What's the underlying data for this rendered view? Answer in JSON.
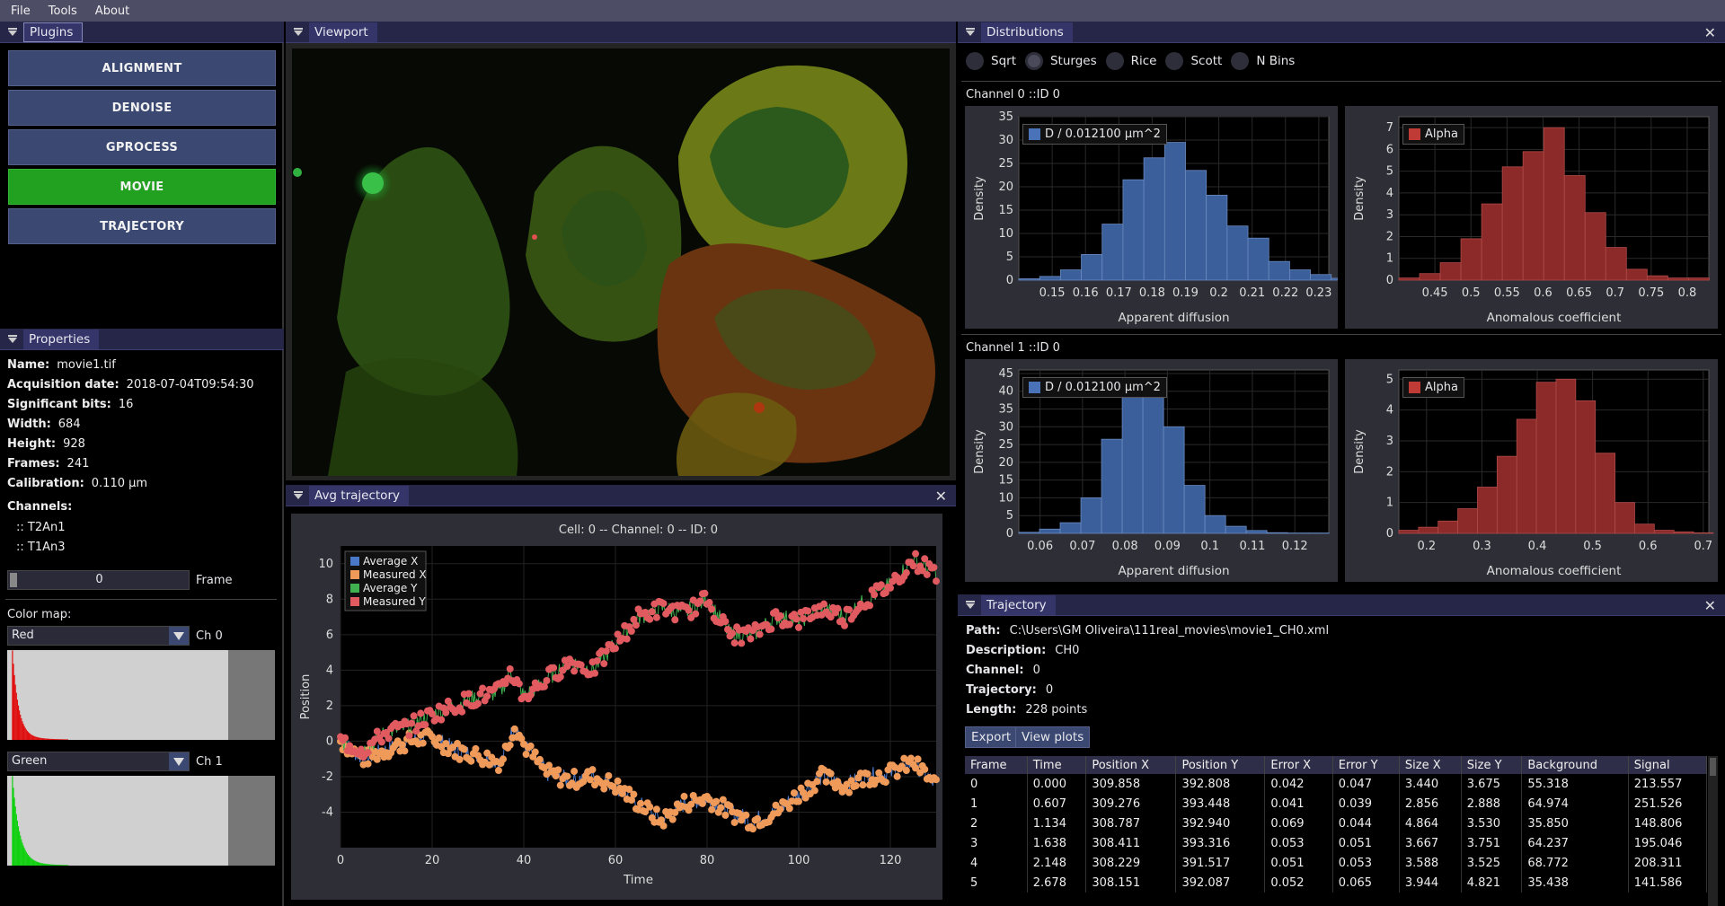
{
  "menu": {
    "items": [
      "File",
      "Tools",
      "About"
    ]
  },
  "plugins": {
    "title": "Plugins",
    "buttons": [
      "ALIGNMENT",
      "DENOISE",
      "GPROCESS",
      "MOVIE",
      "TRAJECTORY"
    ],
    "active": "MOVIE"
  },
  "properties": {
    "title": "Properties",
    "rows": [
      {
        "label": "Name:",
        "value": "movie1.tif"
      },
      {
        "label": "Acquisition date:",
        "value": "2018-07-04T09:54:30"
      },
      {
        "label": "Significant bits:",
        "value": "16"
      },
      {
        "label": "Width:",
        "value": "684"
      },
      {
        "label": "Height:",
        "value": "928"
      },
      {
        "label": "Frames:",
        "value": "241"
      },
      {
        "label": "Calibration:",
        "value": "0.110 µm"
      }
    ],
    "channels_label": "Channels:",
    "channels": [
      ":: T2An1",
      ":: T1An3"
    ],
    "frame_value": "0",
    "frame_label": "Frame",
    "colormap_label": "Color map:",
    "colormaps": [
      {
        "value": "Red",
        "channel": "Ch 0",
        "color": "#e01010"
      },
      {
        "value": "Green",
        "channel": "Ch 1",
        "color": "#10d010"
      }
    ]
  },
  "viewport": {
    "title": "Viewport"
  },
  "avg_trajectory": {
    "title": "Avg trajectory",
    "chart_data": {
      "type": "line",
      "title": "Cell: 0 -- Channel: 0 -- ID: 0",
      "xlabel": "Time",
      "ylabel": "Position",
      "xlim": [
        0,
        130
      ],
      "ylim": [
        -6,
        11
      ],
      "xticks": [
        "0",
        "20",
        "40",
        "60",
        "80",
        "100",
        "120"
      ],
      "yticks": [
        "10",
        "8",
        "6",
        "4",
        "2",
        "0",
        "-2",
        "-4"
      ],
      "legend_position": "top-left",
      "series": [
        {
          "name": "Average X",
          "color": "#4a78c8"
        },
        {
          "name": "Measured X",
          "color": "#f09a5a"
        },
        {
          "name": "Average Y",
          "color": "#40b050"
        },
        {
          "name": "Measured Y",
          "color": "#e05a60"
        }
      ],
      "x_path": [
        [
          0,
          0
        ],
        [
          5,
          -1
        ],
        [
          10,
          -0.5
        ],
        [
          15,
          0
        ],
        [
          20,
          0.2
        ],
        [
          25,
          -0.5
        ],
        [
          30,
          -0.8
        ],
        [
          35,
          -1.2
        ],
        [
          37,
          0.2
        ],
        [
          38,
          1
        ],
        [
          40,
          -0.2
        ],
        [
          45,
          -1.8
        ],
        [
          50,
          -2.2
        ],
        [
          55,
          -2.0
        ],
        [
          60,
          -2.5
        ],
        [
          65,
          -3.5
        ],
        [
          70,
          -4.5
        ],
        [
          75,
          -3.5
        ],
        [
          80,
          -3.2
        ],
        [
          85,
          -4.0
        ],
        [
          90,
          -4.5
        ],
        [
          95,
          -4.0
        ],
        [
          100,
          -3.0
        ],
        [
          105,
          -2.0
        ],
        [
          110,
          -2.5
        ],
        [
          115,
          -2.0
        ],
        [
          120,
          -1.8
        ],
        [
          125,
          -1.2
        ],
        [
          130,
          -2.5
        ]
      ],
      "y_path": [
        [
          0,
          0
        ],
        [
          5,
          -0.5
        ],
        [
          10,
          0.5
        ],
        [
          15,
          0.8
        ],
        [
          20,
          1.5
        ],
        [
          25,
          2.0
        ],
        [
          30,
          2.5
        ],
        [
          35,
          2.8
        ],
        [
          37,
          4.0
        ],
        [
          40,
          2.5
        ],
        [
          45,
          3.5
        ],
        [
          50,
          4.5
        ],
        [
          55,
          4.0
        ],
        [
          60,
          5.5
        ],
        [
          65,
          7.0
        ],
        [
          70,
          7.5
        ],
        [
          75,
          7.2
        ],
        [
          80,
          8.0
        ],
        [
          85,
          6.0
        ],
        [
          90,
          6.0
        ],
        [
          95,
          7.0
        ],
        [
          100,
          6.8
        ],
        [
          105,
          7.5
        ],
        [
          110,
          7.0
        ],
        [
          115,
          8.0
        ],
        [
          120,
          8.8
        ],
        [
          125,
          10.2
        ],
        [
          130,
          9.5
        ]
      ]
    }
  },
  "distributions": {
    "title": "Distributions",
    "bin_options": [
      "Sqrt",
      "Sturges",
      "Rice",
      "Scott",
      "N Bins"
    ],
    "selected_bin": "Sturges",
    "channels": [
      {
        "label": "Channel 0 ::ID 0",
        "charts": [
          {
            "type": "bar",
            "legend": "D / 0.012100 µm^2",
            "color": "#3a5f9a",
            "xlabel": "Apparent diffusion",
            "ylabel": "Density",
            "xlim": [
              0.14,
              0.233
            ],
            "ylim": [
              0,
              35
            ],
            "yticks": [
              0,
              5,
              10,
              15,
              20,
              25,
              30,
              35
            ],
            "xticks": [
              "0.15",
              "0.16",
              "0.17",
              "0.18",
              "0.19",
              "0.2",
              "0.21",
              "0.22",
              "0.23"
            ],
            "xtick_values": [
              0.15,
              0.16,
              0.17,
              0.18,
              0.19,
              0.2,
              0.21,
              0.22,
              0.23
            ],
            "bin_start": 0.14,
            "bin_width": 0.00625,
            "values": [
              0.3,
              0.8,
              2.2,
              5.5,
              12,
              21.5,
              26.2,
              29.5,
              23.5,
              18.2,
              11.6,
              9,
              4,
              2.2,
              1.2,
              0.4
            ]
          },
          {
            "type": "bar",
            "legend": "Alpha",
            "color": "#8b2a28",
            "xlabel": "Anomalous coefficient",
            "ylabel": "Density",
            "xlim": [
              0.4,
              0.83
            ],
            "ylim": [
              0,
              7.5
            ],
            "yticks": [
              0,
              1,
              2,
              3,
              4,
              5,
              6,
              7
            ],
            "xticks": [
              "0.45",
              "0.5",
              "0.55",
              "0.6",
              "0.65",
              "0.7",
              "0.75",
              "0.8"
            ],
            "xtick_values": [
              0.45,
              0.5,
              0.55,
              0.6,
              0.65,
              0.7,
              0.75,
              0.8
            ],
            "bin_start": 0.4,
            "bin_width": 0.0287,
            "values": [
              0.1,
              0.3,
              0.8,
              1.9,
              3.5,
              5.2,
              5.9,
              7.0,
              4.8,
              3.1,
              1.5,
              0.5,
              0.2,
              0.1,
              0.1
            ]
          }
        ]
      },
      {
        "label": "Channel 1 ::ID 0",
        "charts": [
          {
            "type": "bar",
            "legend": "D / 0.012100 µm^2",
            "color": "#3a5f9a",
            "xlabel": "Apparent diffusion",
            "ylabel": "Density",
            "xlim": [
              0.055,
              0.128
            ],
            "ylim": [
              0,
              46
            ],
            "yticks": [
              0,
              5,
              10,
              15,
              20,
              25,
              30,
              35,
              40,
              45
            ],
            "xticks": [
              "0.06",
              "0.07",
              "0.08",
              "0.09",
              "0.1",
              "0.11",
              "0.12"
            ],
            "xtick_values": [
              0.06,
              0.07,
              0.08,
              0.09,
              0.1,
              0.11,
              0.12
            ],
            "bin_start": 0.055,
            "bin_width": 0.00487,
            "values": [
              0.3,
              1.2,
              3,
              10,
              26.5,
              39,
              42,
              30,
              13.5,
              5,
              2,
              0.8,
              0.2,
              0.1,
              0.1
            ]
          },
          {
            "type": "bar",
            "legend": "Alpha",
            "color": "#8b2a28",
            "xlabel": "Anomalous coefficient",
            "ylabel": "Density",
            "xlim": [
              0.15,
              0.71
            ],
            "ylim": [
              0,
              5.3
            ],
            "yticks": [
              0,
              1,
              2,
              3,
              4,
              5
            ],
            "xticks": [
              "0.2",
              "0.3",
              "0.4",
              "0.5",
              "0.6",
              "0.7"
            ],
            "xtick_values": [
              0.2,
              0.3,
              0.4,
              0.5,
              0.6,
              0.7
            ],
            "bin_start": 0.15,
            "bin_width": 0.0355,
            "values": [
              0.1,
              0.2,
              0.4,
              0.8,
              1.5,
              2.5,
              3.7,
              4.9,
              5.0,
              4.3,
              2.6,
              1.0,
              0.3,
              0.1,
              0.05,
              0.02
            ]
          }
        ]
      }
    ]
  },
  "trajectory": {
    "title": "Trajectory",
    "rows": [
      {
        "label": "Path:",
        "value": "C:\\Users\\GM Oliveira\\111real_movies\\movie1_CH0.xml"
      },
      {
        "label": "Description:",
        "value": "CH0"
      },
      {
        "label": "Channel:",
        "value": "0"
      },
      {
        "label": "Trajectory:",
        "value": "0"
      },
      {
        "label": "Length:",
        "value": "228 points"
      }
    ],
    "export_label": "Export",
    "view_plots_label": "View plots",
    "table": {
      "columns": [
        "Frame",
        "Time",
        "Position X",
        "Position Y",
        "Error X",
        "Error Y",
        "Size X",
        "Size Y",
        "Background",
        "Signal"
      ],
      "rows": [
        [
          "0",
          "0.000",
          "309.858",
          "392.808",
          "0.042",
          "0.047",
          "3.440",
          "3.675",
          "55.318",
          "213.557"
        ],
        [
          "1",
          "0.607",
          "309.276",
          "393.448",
          "0.041",
          "0.039",
          "2.856",
          "2.888",
          "64.974",
          "251.526"
        ],
        [
          "2",
          "1.134",
          "308.787",
          "392.940",
          "0.069",
          "0.044",
          "4.864",
          "3.530",
          "35.850",
          "148.806"
        ],
        [
          "3",
          "1.638",
          "308.411",
          "393.316",
          "0.053",
          "0.051",
          "3.667",
          "3.751",
          "64.237",
          "195.046"
        ],
        [
          "4",
          "2.148",
          "308.229",
          "391.517",
          "0.051",
          "0.053",
          "3.588",
          "3.525",
          "68.772",
          "208.311"
        ],
        [
          "5",
          "2.678",
          "308.151",
          "392.087",
          "0.052",
          "0.065",
          "3.944",
          "4.821",
          "35.438",
          "141.586"
        ]
      ]
    }
  }
}
